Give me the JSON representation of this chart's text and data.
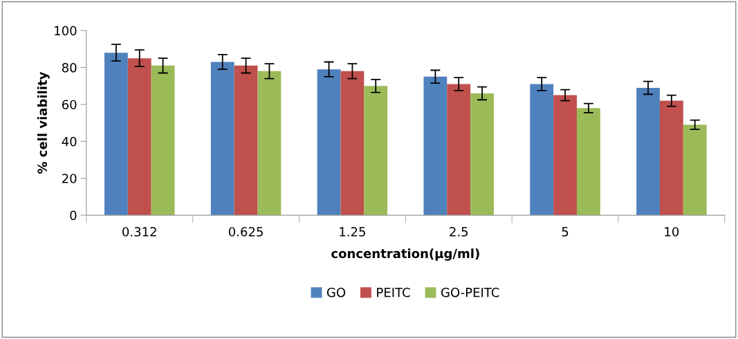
{
  "chart_data": {
    "type": "bar",
    "xlabel": "concentration(µg/ml)",
    "ylabel": "% cell viability",
    "categories": [
      "0.312",
      "0.625",
      "1.25",
      "2.5",
      "5",
      "10"
    ],
    "series": [
      {
        "name": "GO",
        "color": "#4f81bd",
        "values": [
          88,
          83,
          79,
          75,
          71,
          69
        ],
        "errors": [
          4.5,
          4,
          4,
          3.5,
          3.5,
          3.5
        ]
      },
      {
        "name": "PEITC",
        "color": "#c0504d",
        "values": [
          85,
          81,
          78,
          71,
          65,
          62
        ],
        "errors": [
          4.5,
          4,
          4,
          3.5,
          3,
          3
        ]
      },
      {
        "name": "GO-PEITC",
        "color": "#9bbb59",
        "values": [
          81,
          78,
          70,
          66,
          58,
          49
        ],
        "errors": [
          4,
          4,
          3.5,
          3.5,
          2.5,
          2.5
        ]
      }
    ],
    "ylim": [
      0,
      100
    ],
    "yticks": [
      0,
      20,
      40,
      60,
      80,
      100
    ],
    "grid": false,
    "legend": "bottom"
  }
}
